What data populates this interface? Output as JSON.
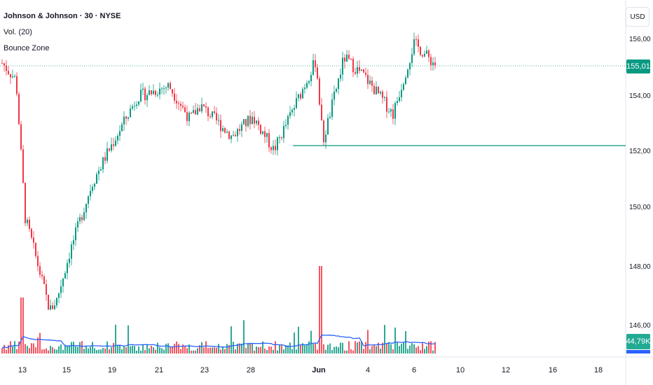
{
  "header": {
    "title": "Johnson & Johnson · 30 · NYSE",
    "volume_indicator": "Vol. (20)",
    "bounce_indicator": "Bounce Zone"
  },
  "price_axis": {
    "currency": "USD",
    "labels": [
      "156,00",
      "154,00",
      "152,00",
      "150,00",
      "148,00",
      "146,00"
    ],
    "current_price": "155,01",
    "current_volume": "44,79K"
  },
  "time_axis": {
    "labels": [
      "13",
      "15",
      "19",
      "21",
      "23",
      "28",
      "Jun",
      "4",
      "6",
      "10",
      "12",
      "16",
      "18"
    ]
  },
  "colors": {
    "up": "#089981",
    "down": "#f23645",
    "volume_ma": "#2962ff",
    "support_line": "#089981"
  },
  "chart_data": {
    "type": "candlestick",
    "symbol": "JNJ",
    "price_levels": {
      "current": 155.01,
      "support": 152.2
    },
    "close_path": [
      {
        "x": "13",
        "close": 155.1
      },
      {
        "x": "13",
        "close": 154.5
      },
      {
        "x": "14",
        "close": 149.6
      },
      {
        "x": "14",
        "close": 148.7
      },
      {
        "x": "14",
        "close": 146.3
      },
      {
        "x": "15",
        "close": 146.7
      },
      {
        "x": "15",
        "close": 148.5
      },
      {
        "x": "19",
        "close": 150.8
      },
      {
        "x": "19",
        "close": 151.8
      },
      {
        "x": "21",
        "close": 153.9
      },
      {
        "x": "21",
        "close": 154.3
      },
      {
        "x": "21",
        "close": 153.1
      },
      {
        "x": "23",
        "close": 153.6
      },
      {
        "x": "23",
        "close": 152.5
      },
      {
        "x": "28",
        "close": 153.2
      },
      {
        "x": "28",
        "close": 152.0
      },
      {
        "x": "Jun",
        "close": 155.2
      },
      {
        "x": "Jun",
        "close": 152.3
      },
      {
        "x": "Jun",
        "close": 155.3
      },
      {
        "x": "4",
        "close": 154.6
      },
      {
        "x": "4",
        "close": 153.3
      },
      {
        "x": "6",
        "close": 155.8
      },
      {
        "x": "6",
        "close": 155.01
      }
    ]
  }
}
